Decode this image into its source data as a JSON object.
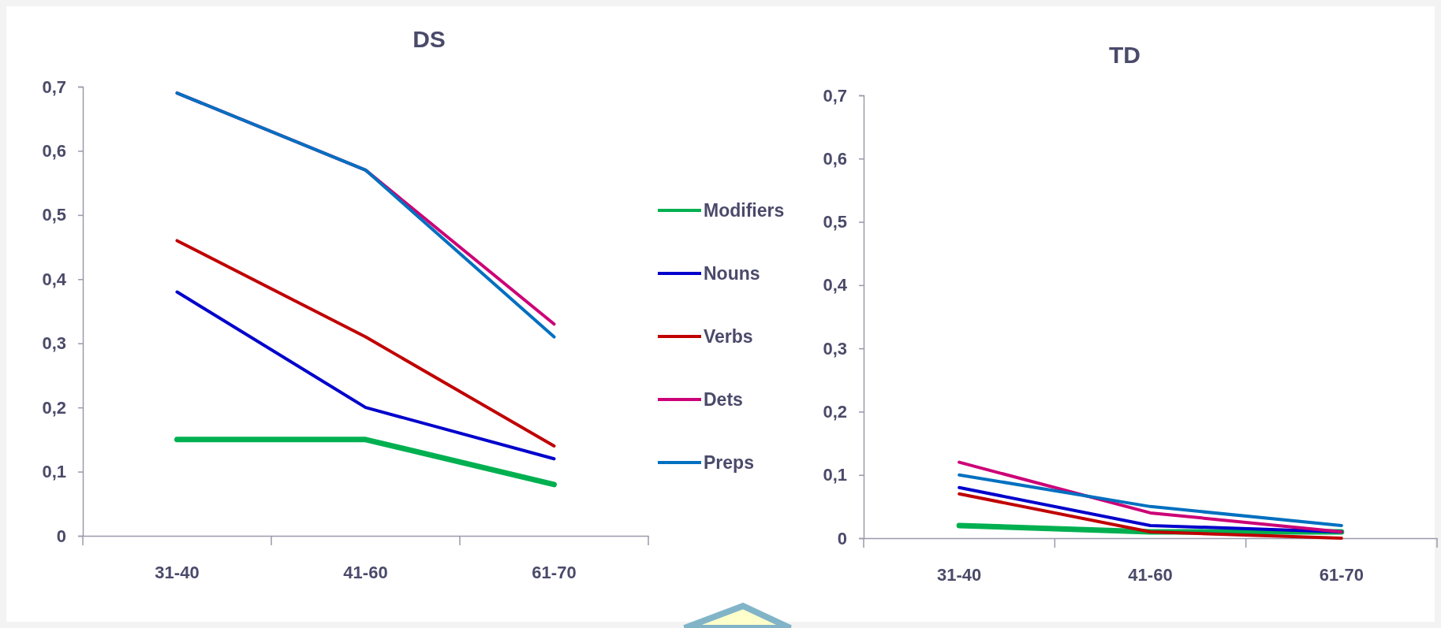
{
  "chart_data": [
    {
      "type": "line",
      "title": "DS",
      "categories": [
        "31-40",
        "41-60",
        "61-70"
      ],
      "ylim": [
        0,
        0.7
      ],
      "yticks": [
        {
          "value": 0,
          "label": "0"
        },
        {
          "value": 0.1,
          "label": "0,1"
        },
        {
          "value": 0.2,
          "label": "0,2"
        },
        {
          "value": 0.3,
          "label": "0,3"
        },
        {
          "value": 0.4,
          "label": "0,4"
        },
        {
          "value": 0.5,
          "label": "0,5"
        },
        {
          "value": 0.6,
          "label": "0,6"
        },
        {
          "value": 0.7,
          "label": "0,7"
        }
      ],
      "grid": false,
      "legend": "right",
      "marker": "none",
      "line_style": "solid",
      "series": [
        {
          "name": "Modifiers",
          "color": "#00b050",
          "values": [
            0.15,
            0.15,
            0.08
          ]
        },
        {
          "name": "Nouns",
          "color": "#0000cc",
          "values": [
            0.38,
            0.2,
            0.12
          ]
        },
        {
          "name": "Verbs",
          "color": "#c00000",
          "values": [
            0.46,
            0.31,
            0.14
          ]
        },
        {
          "name": "Dets",
          "color": "#cc0077",
          "values": [
            0.69,
            0.57,
            0.33
          ]
        },
        {
          "name": "Preps",
          "color": "#0070c0",
          "values": [
            0.69,
            0.57,
            0.31
          ]
        }
      ]
    },
    {
      "type": "line",
      "title": "TD",
      "categories": [
        "31-40",
        "41-60",
        "61-70"
      ],
      "ylim": [
        0,
        0.7
      ],
      "yticks": [
        {
          "value": 0,
          "label": "0"
        },
        {
          "value": 0.1,
          "label": "0,1"
        },
        {
          "value": 0.2,
          "label": "0,2"
        },
        {
          "value": 0.3,
          "label": "0,3"
        },
        {
          "value": 0.4,
          "label": "0,4"
        },
        {
          "value": 0.5,
          "label": "0,5"
        },
        {
          "value": 0.6,
          "label": "0,6"
        },
        {
          "value": 0.7,
          "label": "0,7"
        }
      ],
      "grid": false,
      "legend": false,
      "marker": "none",
      "line_style": "solid",
      "series": [
        {
          "color": "#00b050",
          "values": [
            0.02,
            0.01,
            0.01
          ]
        },
        {
          "color": "#0000cc",
          "values": [
            0.08,
            0.02,
            0.01
          ]
        },
        {
          "color": "#c00000",
          "values": [
            0.07,
            0.01,
            0.0
          ]
        },
        {
          "color": "#cc0077",
          "values": [
            0.12,
            0.04,
            0.01
          ]
        },
        {
          "color": "#0070c0",
          "values": [
            0.1,
            0.05,
            0.02
          ]
        }
      ]
    }
  ]
}
